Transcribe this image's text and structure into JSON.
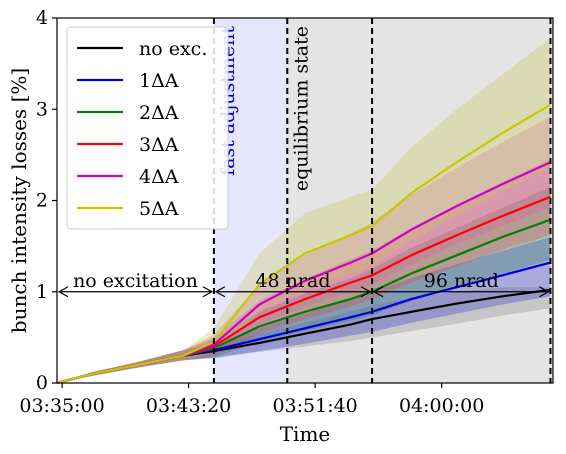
{
  "chart_data": {
    "type": "line",
    "title": "",
    "xlabel": "Time",
    "ylabel": "bunch intensity losses [%]",
    "x_tick_labels": [
      "03:35:00",
      "03:43:20",
      "03:51:40",
      "04:00:00"
    ],
    "x_ticks": [
      "03:35:00",
      "03:43:20",
      "03:51:40",
      "04:00:00"
    ],
    "xlim": [
      "03:34:40",
      "04:07:20"
    ],
    "ylim": [
      0,
      4
    ],
    "y_ticks": [
      0,
      1,
      2,
      3,
      4
    ],
    "y_tick_labels": [
      "0",
      "1",
      "2",
      "3",
      "4"
    ],
    "grid": false,
    "legend_position": "top-left",
    "vlines": [
      "03:45:00",
      "03:49:50",
      "03:55:25",
      "04:07:10"
    ],
    "regions": [
      {
        "name": "fast adjustment",
        "from": "03:45:00",
        "to": "03:49:50",
        "color": "#e6e6ff",
        "label_color": "#0000cc"
      },
      {
        "name": "equilibrium state",
        "from": "03:49:50",
        "to": "04:07:20",
        "color": "#e4e4e4",
        "label_color": "#000000"
      }
    ],
    "annotations": [
      {
        "text": "no excitation",
        "from": "03:34:40",
        "to": "03:45:00",
        "y": 1.0
      },
      {
        "text": "48 nrad",
        "from": "03:45:00",
        "to": "03:55:25",
        "y": 1.0
      },
      {
        "text": "96 nrad",
        "from": "03:55:25",
        "to": "04:07:10",
        "y": 1.0
      }
    ],
    "series": [
      {
        "name": "no exc.",
        "color": "#000000",
        "band_color": "#888888",
        "x": [
          "03:34:40",
          "03:37:00",
          "03:40:00",
          "03:43:00",
          "03:45:00",
          "03:48:00",
          "03:51:00",
          "03:54:00",
          "03:55:25",
          "03:58:00",
          "04:01:00",
          "04:04:00",
          "04:07:10"
        ],
        "y": [
          0.0,
          0.1,
          0.2,
          0.3,
          0.35,
          0.44,
          0.54,
          0.64,
          0.7,
          0.78,
          0.87,
          0.95,
          1.02
        ],
        "lower": [
          0.0,
          0.08,
          0.17,
          0.25,
          0.28,
          0.34,
          0.4,
          0.46,
          0.5,
          0.57,
          0.65,
          0.74,
          0.82
        ],
        "upper": [
          0.0,
          0.12,
          0.23,
          0.36,
          0.42,
          0.54,
          0.66,
          0.78,
          0.85,
          0.93,
          1.0,
          1.05,
          1.05
        ]
      },
      {
        "name": "1ΔA",
        "color": "#0000dd",
        "band_color": "#3333cc",
        "x": [
          "03:34:40",
          "03:37:00",
          "03:40:00",
          "03:43:00",
          "03:45:00",
          "03:48:00",
          "03:51:00",
          "03:54:00",
          "03:55:25",
          "03:58:00",
          "04:01:00",
          "04:04:00",
          "04:07:10"
        ],
        "y": [
          0.0,
          0.1,
          0.2,
          0.3,
          0.36,
          0.48,
          0.6,
          0.72,
          0.78,
          0.92,
          1.05,
          1.18,
          1.32
        ],
        "lower": [
          0.0,
          0.08,
          0.17,
          0.25,
          0.27,
          0.35,
          0.43,
          0.52,
          0.56,
          0.66,
          0.76,
          0.86,
          0.95
        ],
        "upper": [
          0.0,
          0.12,
          0.23,
          0.36,
          0.44,
          0.6,
          0.76,
          0.92,
          0.99,
          1.15,
          1.3,
          1.45,
          1.6
        ]
      },
      {
        "name": "2ΔA",
        "color": "#008000",
        "band_color": "#2f7f5f",
        "x": [
          "03:34:40",
          "03:37:00",
          "03:40:00",
          "03:43:00",
          "03:45:00",
          "03:48:00",
          "03:51:00",
          "03:54:00",
          "03:55:25",
          "03:58:00",
          "04:01:00",
          "04:04:00",
          "04:07:10"
        ],
        "y": [
          0.0,
          0.1,
          0.2,
          0.3,
          0.38,
          0.62,
          0.78,
          0.92,
          1.0,
          1.2,
          1.4,
          1.6,
          1.79
        ],
        "lower": [
          0.0,
          0.08,
          0.17,
          0.25,
          0.28,
          0.45,
          0.57,
          0.68,
          0.74,
          0.9,
          1.05,
          1.2,
          1.35
        ],
        "upper": [
          0.0,
          0.12,
          0.23,
          0.36,
          0.48,
          0.78,
          0.98,
          1.15,
          1.25,
          1.48,
          1.7,
          1.92,
          2.15
        ]
      },
      {
        "name": "3ΔA",
        "color": "#ff0000",
        "band_color": "#dd4444",
        "x": [
          "03:34:40",
          "03:37:00",
          "03:40:00",
          "03:43:00",
          "03:45:00",
          "03:48:00",
          "03:51:00",
          "03:54:00",
          "03:55:25",
          "03:58:00",
          "04:01:00",
          "04:04:00",
          "04:07:10"
        ],
        "y": [
          0.0,
          0.1,
          0.2,
          0.3,
          0.4,
          0.72,
          0.92,
          1.1,
          1.18,
          1.4,
          1.62,
          1.83,
          2.04
        ],
        "lower": [
          0.0,
          0.08,
          0.17,
          0.25,
          0.3,
          0.54,
          0.7,
          0.84,
          0.92,
          1.1,
          1.28,
          1.46,
          1.62
        ],
        "upper": [
          0.0,
          0.12,
          0.23,
          0.36,
          0.5,
          0.9,
          1.14,
          1.36,
          1.45,
          1.7,
          1.95,
          2.2,
          2.45
        ]
      },
      {
        "name": "4ΔA",
        "color": "#cc00cc",
        "band_color": "#cc66aa",
        "x": [
          "03:34:40",
          "03:37:00",
          "03:40:00",
          "03:43:00",
          "03:45:00",
          "03:48:00",
          "03:51:00",
          "03:54:00",
          "03:55:25",
          "03:58:00",
          "04:01:00",
          "04:04:00",
          "04:07:10"
        ],
        "y": [
          0.0,
          0.1,
          0.2,
          0.3,
          0.42,
          0.86,
          1.12,
          1.32,
          1.42,
          1.68,
          1.94,
          2.18,
          2.42
        ],
        "lower": [
          0.0,
          0.08,
          0.17,
          0.25,
          0.31,
          0.64,
          0.84,
          1.0,
          1.08,
          1.3,
          1.52,
          1.72,
          1.92
        ],
        "upper": [
          0.0,
          0.12,
          0.23,
          0.36,
          0.53,
          1.08,
          1.4,
          1.64,
          1.76,
          2.06,
          2.36,
          2.64,
          2.92
        ]
      },
      {
        "name": "5ΔA",
        "color": "#c8c800",
        "band_color": "#c8c850",
        "x": [
          "03:34:40",
          "03:37:00",
          "03:40:00",
          "03:43:00",
          "03:45:00",
          "03:48:00",
          "03:51:00",
          "03:54:00",
          "03:55:25",
          "03:58:00",
          "04:01:00",
          "04:04:00",
          "04:07:10"
        ],
        "y": [
          0.0,
          0.1,
          0.2,
          0.3,
          0.45,
          1.08,
          1.42,
          1.62,
          1.72,
          2.08,
          2.42,
          2.74,
          3.05
        ],
        "lower": [
          0.0,
          0.08,
          0.17,
          0.25,
          0.33,
          0.78,
          1.04,
          1.2,
          1.28,
          1.56,
          1.84,
          2.1,
          2.36
        ],
        "upper": [
          0.0,
          0.12,
          0.23,
          0.36,
          0.6,
          1.42,
          1.86,
          2.04,
          2.12,
          2.58,
          3.0,
          3.38,
          3.78
        ]
      }
    ]
  }
}
